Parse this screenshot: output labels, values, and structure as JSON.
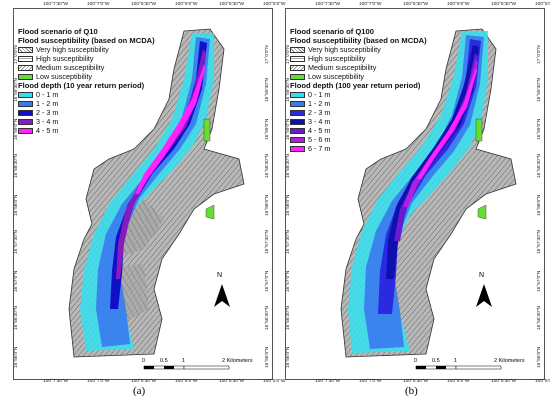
{
  "panels": [
    {
      "id": "a",
      "title_line1": "Flood scenario of Q10",
      "title_line2": "Flood susceptibility (based on MCDA)",
      "susceptibility": [
        "Very high susceptibility",
        "High susceptibility",
        "Medium susceptibility",
        "Low susceptibility"
      ],
      "depth_title": "Flood depth (10 year return period)",
      "depth_classes": [
        {
          "label": "0 - 1 m",
          "color": "#33e0f0"
        },
        {
          "label": "1 - 2 m",
          "color": "#3a7af0"
        },
        {
          "label": "2 - 3 m",
          "color": "#1010c8"
        },
        {
          "label": "3 - 4 m",
          "color": "#8a1ac0"
        },
        {
          "label": "4 - 5 m",
          "color": "#ff22ff"
        }
      ],
      "top_ticks": [
        "100°7'30\"W",
        "100°7'0\"W",
        "100°6'30\"W",
        "100°6'0\"W",
        "100°5'30\"W",
        "100°5'0\"W"
      ],
      "bottom_ticks": [
        "100°7'30\"W",
        "100°7'0\"W",
        "100°6'30\"W",
        "100°6'0\"W",
        "100°5'30\"W",
        "100°5'0\"W"
      ],
      "left_ticks": [
        "17°0'0\"N",
        "16°59'30\"N",
        "16°59'0\"N",
        "16°58'30\"N",
        "16°58'0\"N",
        "16°57'30\"N",
        "16°57'0\"N",
        "16°56'30\"N",
        "16°56'0\"N"
      ],
      "right_ticks": [
        "17°0'0\"N",
        "16°59'30\"N",
        "16°59'0\"N",
        "16°58'30\"N",
        "16°58'0\"N",
        "16°57'30\"N",
        "16°57'0\"N",
        "16°56'30\"N",
        "16°56'0\"N"
      ],
      "north": "N",
      "scale_labels": [
        "0",
        "0.5",
        "1",
        "2 Kilometers"
      ]
    },
    {
      "id": "b",
      "title_line1": "Flood scenario of Q100",
      "title_line2": "Flood susceptibility (based on MCDA)",
      "susceptibility": [
        "Very high susceptibility",
        "High susceptibility",
        "Medium susceptibility",
        "Low susceptibility"
      ],
      "depth_title": "Flood depth (100 year return period)",
      "depth_classes": [
        {
          "label": "0 - 1 m",
          "color": "#33e0f0"
        },
        {
          "label": "1 - 2 m",
          "color": "#3a7af0"
        },
        {
          "label": "2 - 3 m",
          "color": "#2a2ae0"
        },
        {
          "label": "3 - 4 m",
          "color": "#1010b0"
        },
        {
          "label": "4 - 5 m",
          "color": "#6a1ad0"
        },
        {
          "label": "5 - 6 m",
          "color": "#b020e0"
        },
        {
          "label": "6 - 7 m",
          "color": "#ff22ff"
        }
      ],
      "top_ticks": [
        "100°7'30\"W",
        "100°7'0\"W",
        "100°6'30\"W",
        "100°6'0\"W",
        "100°5'30\"W",
        "100°5'0\"W"
      ],
      "bottom_ticks": [
        "100°7'30\"W",
        "100°7'0\"W",
        "100°6'30\"W",
        "100°6'0\"W",
        "100°5'30\"W",
        "100°5'0\"W"
      ],
      "left_ticks": [
        "17°0'0\"N",
        "16°59'30\"N",
        "16°59'0\"N",
        "16°58'30\"N",
        "16°58'0\"N",
        "16°57'30\"N",
        "16°57'0\"N",
        "16°56'30\"N",
        "16°56'0\"N"
      ],
      "right_ticks": [
        "17°0'0\"N",
        "16°59'30\"N",
        "16°59'0\"N",
        "16°58'30\"N",
        "16°58'0\"N",
        "16°57'30\"N",
        "16°57'0\"N",
        "16°56'30\"N",
        "16°56'0\"N"
      ],
      "north": "N",
      "scale_labels": [
        "0",
        "0.5",
        "1",
        "2 Kilometers"
      ]
    }
  ],
  "captions": [
    "(a)",
    "(b)"
  ],
  "colors": {
    "low_susceptibility": "#66dd33",
    "urban": "#b8b8b8"
  }
}
